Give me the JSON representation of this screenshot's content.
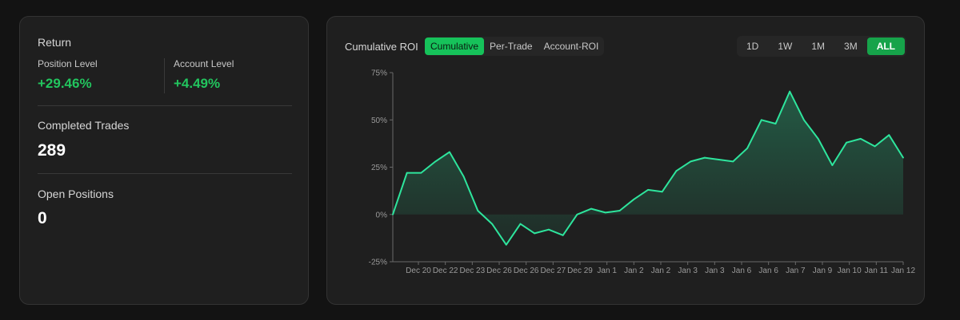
{
  "stats": {
    "return_title": "Return",
    "position_level_label": "Position Level",
    "position_level_value": "+29.46%",
    "account_level_label": "Account Level",
    "account_level_value": "+4.49%",
    "completed_trades_label": "Completed Trades",
    "completed_trades_value": "289",
    "open_positions_label": "Open Positions",
    "open_positions_value": "0"
  },
  "chart_panel": {
    "title": "Cumulative ROI",
    "modes": [
      "Cumulative",
      "Per-Trade",
      "Account-ROI"
    ],
    "active_mode": "Cumulative",
    "ranges": [
      "1D",
      "1W",
      "1M",
      "3M",
      "ALL"
    ],
    "active_range": "ALL"
  },
  "colors": {
    "accent_green": "#22c55e",
    "button_green": "#16a34a",
    "line_color": "#2ee59d",
    "background": "#131313",
    "card": "#1f1f1f"
  },
  "chart_data": {
    "type": "area",
    "title": "",
    "xlabel": "",
    "ylabel": "",
    "ylim": [
      -25,
      75
    ],
    "y_ticks": [
      -25,
      0,
      25,
      50,
      75
    ],
    "y_tick_labels": [
      "-25%",
      "0%",
      "25%",
      "50%",
      "75%"
    ],
    "x_tick_labels": [
      "Dec 20",
      "Dec 22",
      "Dec 23",
      "Dec 26",
      "Dec 26",
      "Dec 27",
      "Dec 29",
      "Jan 1",
      "Jan 2",
      "Jan 2",
      "Jan 3",
      "Jan 3",
      "Jan 6",
      "Jan 6",
      "Jan 7",
      "Jan 9",
      "Jan 10",
      "Jan 11",
      "Jan 12"
    ],
    "grid": false,
    "x": [
      0,
      0.5,
      1,
      1.5,
      2,
      2.5,
      3,
      3.5,
      4,
      4.5,
      5,
      5.5,
      6,
      6.5,
      7,
      7.5,
      8,
      8.5,
      9,
      9.5,
      10,
      10.5,
      11,
      11.5,
      12,
      12.5,
      13,
      13.5,
      14,
      14.5,
      15,
      15.5,
      16,
      16.5,
      17,
      17.5,
      18
    ],
    "values": [
      0,
      22,
      22,
      28,
      33,
      20,
      2,
      -5,
      -16,
      -5,
      -10,
      -8,
      -11,
      0,
      3,
      1,
      2,
      8,
      13,
      12,
      23,
      28,
      30,
      29,
      28,
      35,
      50,
      48,
      65,
      50,
      40,
      26,
      38,
      40,
      36,
      42,
      30
    ]
  }
}
